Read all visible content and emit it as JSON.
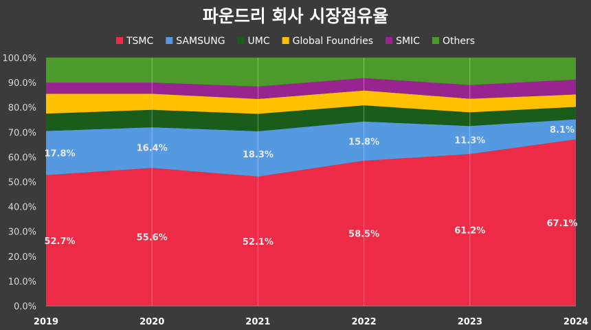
{
  "chart_data": {
    "type": "area",
    "stacked": true,
    "title": "파운드리 회사 시장점유율",
    "categories": [
      "2019",
      "2020",
      "2021",
      "2022",
      "2023",
      "2024"
    ],
    "ylim": [
      0,
      100
    ],
    "yticks": [
      "0.0%",
      "10.0%",
      "20.0%",
      "30.0%",
      "40.0%",
      "50.0%",
      "60.0%",
      "70.0%",
      "80.0%",
      "90.0%",
      "100.0%"
    ],
    "grid": true,
    "legend": "top",
    "series": [
      {
        "name": "TSMC",
        "color": "#ee2b47",
        "values": [
          52.7,
          55.6,
          52.1,
          58.5,
          61.2,
          67.1
        ],
        "labels": [
          "52.7%",
          "55.6%",
          "52.1%",
          "58.5%",
          "61.2%",
          "67.1%"
        ]
      },
      {
        "name": "SAMSUNG",
        "color": "#5599e0",
        "values": [
          17.8,
          16.4,
          18.3,
          15.8,
          11.3,
          8.1
        ],
        "labels": [
          "17.8%",
          "16.4%",
          "18.3%",
          "15.8%",
          "11.3%",
          "8.1%"
        ]
      },
      {
        "name": "UMC",
        "color": "#1a5c1a",
        "values": [
          7.0,
          7.0,
          7.0,
          6.5,
          5.5,
          5.0
        ]
      },
      {
        "name": "Global Foundries",
        "color": "#ffc000",
        "values": [
          8.0,
          6.5,
          6.0,
          6.0,
          5.5,
          5.0
        ]
      },
      {
        "name": "SMIC",
        "color": "#97248f",
        "values": [
          4.5,
          4.5,
          5.0,
          5.0,
          5.5,
          6.0
        ]
      },
      {
        "name": "Others",
        "color": "#4c9a2a",
        "values": [
          10.0,
          10.0,
          11.6,
          8.2,
          11.0,
          8.8
        ]
      }
    ]
  }
}
